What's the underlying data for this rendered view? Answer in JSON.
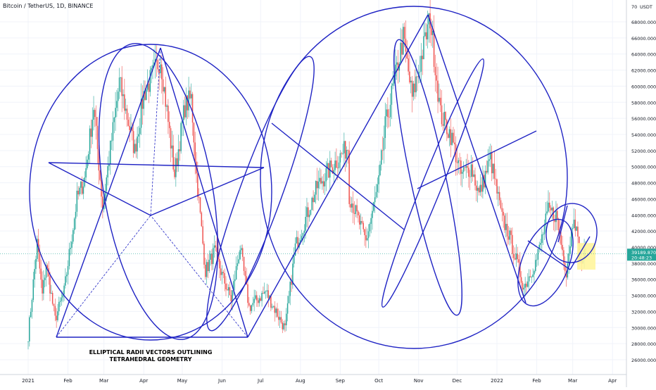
{
  "header": {
    "title": "Bitcoin / TetherUS, 1D, BINANCE"
  },
  "chart_data": {
    "type": "candlestick",
    "title": "Bitcoin / TetherUS, 1D, BINANCE",
    "annotation": "ELLIPTICAL RADII VECTORS OUTLINING TETRAHEDRAL GEOMETRY",
    "annotation_lines": [
      "ELLIPTICAL RADII VECTORS OUTLINING",
      "TETRAHEDRAL GEOMETRY"
    ],
    "currency_label": "USDT",
    "ylim": [
      25000,
      70000
    ],
    "y_ticks": [
      26000,
      28000,
      30000,
      32000,
      34000,
      36000,
      38000,
      40000,
      42000,
      44000,
      46000,
      48000,
      50000,
      52000,
      54000,
      56000,
      58000,
      60000,
      62000,
      64000,
      66000,
      68000
    ],
    "y_tick_labels": [
      "26000.0000",
      "28000.0000",
      "30000.0000",
      "32000.0000",
      "34000.0000",
      "36000.0000",
      "38000.0000",
      "40000.0000",
      "42000.0000",
      "44000.0000",
      "46000.0000",
      "48000.0000",
      "50000.0000",
      "52000.0000",
      "54000.0000",
      "56000.0000",
      "58000.0000",
      "60000.0000",
      "62000.0000",
      "64000.0000",
      "66000.0000",
      "68000.0000"
    ],
    "top_tick_label": "70",
    "x_ticks": [
      "2021",
      "Feb",
      "Mar",
      "Apr",
      "May",
      "Jun",
      "Jul",
      "Aug",
      "Sep",
      "Oct",
      "Nov",
      "Dec",
      "2022",
      "Feb",
      "Mar",
      "Apr"
    ],
    "last_price": "39189.8700",
    "countdown": "20:48:23",
    "colors": {
      "up": "#26a69a",
      "down": "#ef5350",
      "shapes": "#1f23c4",
      "last_price": "#26a69a",
      "highlight": "#fff59d"
    },
    "price_path": [
      [
        "2021-01-01",
        29000
      ],
      [
        "2021-01-08",
        40500
      ],
      [
        "2021-01-12",
        34000
      ],
      [
        "2021-01-15",
        38000
      ],
      [
        "2021-01-22",
        31000
      ],
      [
        "2021-01-29",
        34500
      ],
      [
        "2021-02-08",
        46000
      ],
      [
        "2021-02-14",
        48500
      ],
      [
        "2021-02-21",
        57500
      ],
      [
        "2021-02-28",
        45000
      ],
      [
        "2021-03-13",
        60500
      ],
      [
        "2021-03-25",
        52000
      ],
      [
        "2021-04-01",
        59000
      ],
      [
        "2021-04-14",
        63500
      ],
      [
        "2021-04-25",
        49000
      ],
      [
        "2021-05-03",
        57500
      ],
      [
        "2021-05-08",
        58500
      ],
      [
        "2021-05-12",
        49000
      ],
      [
        "2021-05-19",
        37000
      ],
      [
        "2021-05-26",
        39500
      ],
      [
        "2021-06-01",
        36500
      ],
      [
        "2021-06-08",
        33500
      ],
      [
        "2021-06-15",
        40000
      ],
      [
        "2021-06-22",
        32500
      ],
      [
        "2021-07-05",
        34500
      ],
      [
        "2021-07-20",
        29800
      ],
      [
        "2021-07-28",
        40000
      ],
      [
        "2021-08-14",
        47500
      ],
      [
        "2021-08-23",
        49500
      ],
      [
        "2021-09-07",
        52500
      ],
      [
        "2021-09-08",
        46500
      ],
      [
        "2021-09-21",
        40700
      ],
      [
        "2021-10-01",
        48000
      ],
      [
        "2021-10-06",
        55000
      ],
      [
        "2021-10-20",
        66000
      ],
      [
        "2021-10-27",
        58500
      ],
      [
        "2021-11-10",
        68500
      ],
      [
        "2021-11-18",
        56500
      ],
      [
        "2021-11-26",
        54000
      ],
      [
        "2021-12-04",
        49000
      ],
      [
        "2021-12-12",
        50000
      ],
      [
        "2021-12-18",
        46500
      ],
      [
        "2021-12-27",
        51000
      ],
      [
        "2022-01-05",
        43500
      ],
      [
        "2022-01-10",
        41700
      ],
      [
        "2022-01-22",
        35000
      ],
      [
        "2022-02-01",
        38500
      ],
      [
        "2022-02-10",
        44500
      ],
      [
        "2022-02-16",
        44000
      ],
      [
        "2022-02-24",
        37000
      ],
      [
        "2022-03-02",
        44400
      ],
      [
        "2022-03-07",
        38000
      ],
      [
        "2022-03-11",
        39189
      ]
    ]
  }
}
